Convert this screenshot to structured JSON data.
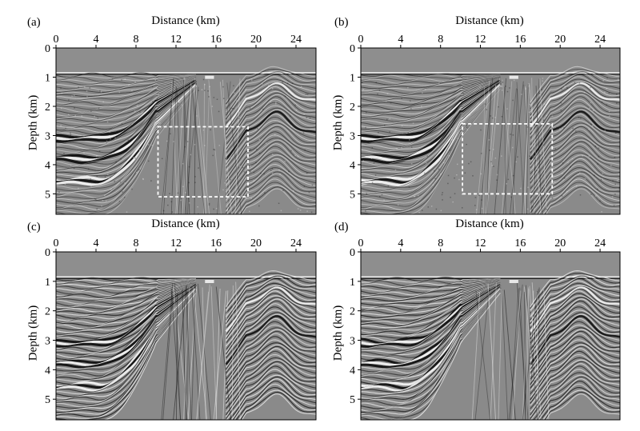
{
  "figure": {
    "panels": [
      {
        "tag": "(a)",
        "xlabel": "Distance (km)",
        "ylabel": "Depth (km)",
        "dashed_box": true,
        "box_km": {
          "x0": 10.2,
          "x1": 19.2,
          "y0": 2.7,
          "y1": 5.1
        }
      },
      {
        "tag": "(b)",
        "xlabel": "Distance (km)",
        "ylabel": "Depth (km)",
        "dashed_box": true,
        "box_km": {
          "x0": 10.2,
          "x1": 19.2,
          "y0": 2.6,
          "y1": 5.0
        }
      },
      {
        "tag": "(c)",
        "xlabel": "Distance (km)",
        "ylabel": "Depth (km)",
        "dashed_box": false
      },
      {
        "tag": "(d)",
        "xlabel": "Distance (km)",
        "ylabel": "Depth (km)",
        "dashed_box": false
      }
    ],
    "x_ticks": [
      "0",
      "4",
      "8",
      "12",
      "16",
      "20",
      "24"
    ],
    "y_ticks": [
      "0",
      "1",
      "2",
      "3",
      "4",
      "5"
    ],
    "x_range_km": [
      0,
      26
    ],
    "y_range_km": [
      0,
      5.7
    ],
    "water_depth_km": 0.85,
    "colors": {
      "background": "#8a8a8a",
      "dark": "#111111",
      "light": "#f2f2f2",
      "box": "#ffffff"
    }
  }
}
